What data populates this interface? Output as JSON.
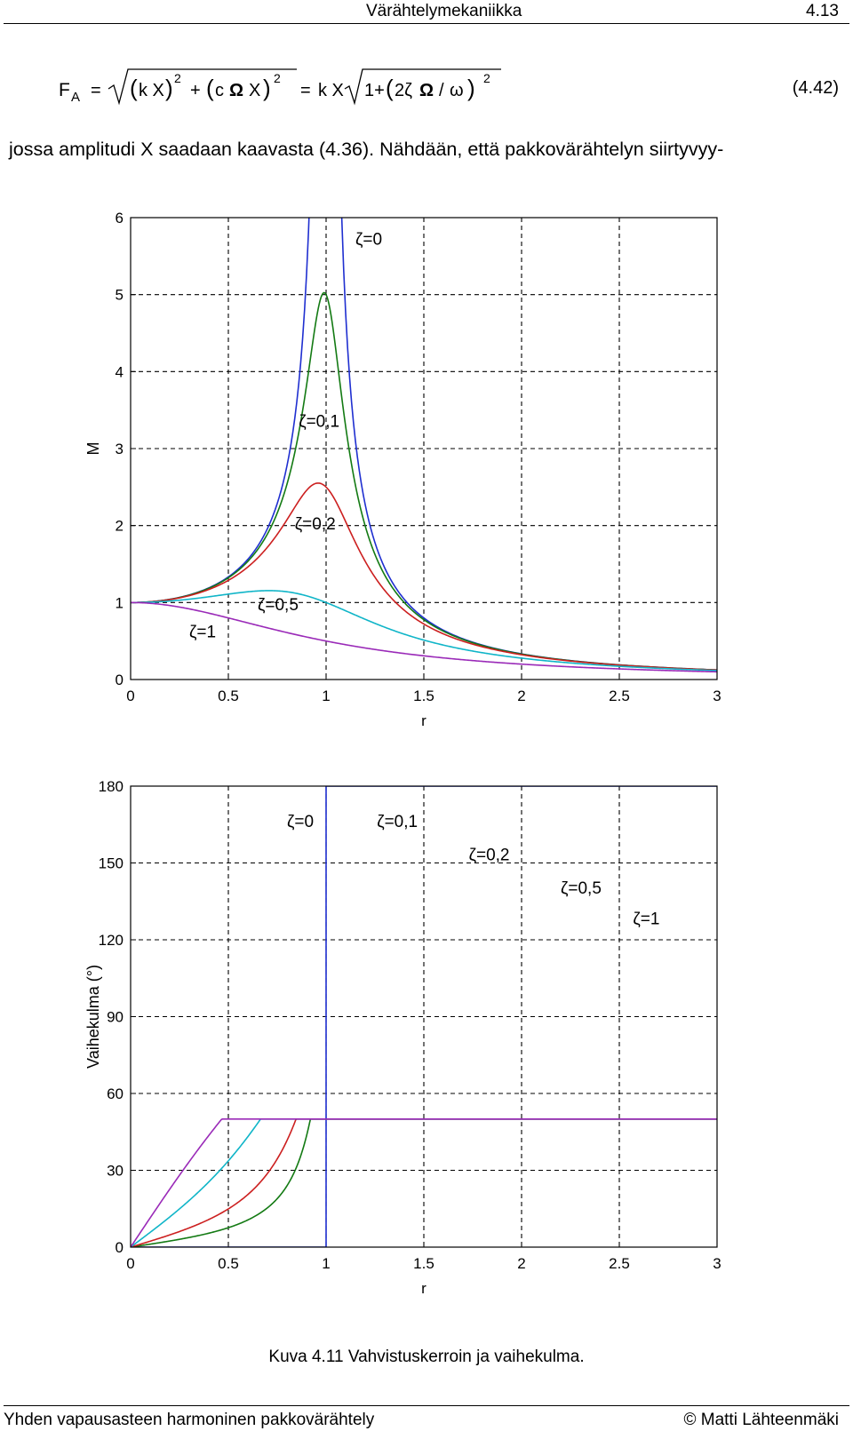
{
  "header": {
    "title": "Värähtelymekaniikka",
    "page": "4.13"
  },
  "equation": {
    "lhs": "F",
    "lhs_sub": "A",
    "number": "(4.42)"
  },
  "paragraph": "jossa amplitudi X saadaan kaavasta (4.36). Nähdään, että pakkovärähtelyn siirtyvyy-",
  "chart_data": [
    {
      "type": "line",
      "xlabel": "r",
      "ylabel": "M",
      "xlim": [
        0,
        3
      ],
      "ylim": [
        0,
        6
      ],
      "xticks": [
        "0",
        "0.5",
        "1",
        "1.5",
        "2",
        "2.5",
        "3"
      ],
      "yticks": [
        "0",
        "1",
        "2",
        "3",
        "4",
        "5",
        "6"
      ],
      "grid": true,
      "series": [
        {
          "name": "ζ=0",
          "color": "#1f2fd0",
          "zeta": 0
        },
        {
          "name": "ζ=0,1",
          "color": "#137a13",
          "zeta": 0.1
        },
        {
          "name": "ζ=0,2",
          "color": "#cc1f1f",
          "zeta": 0.2
        },
        {
          "name": "ζ=0,5",
          "color": "#10b5c8",
          "zeta": 0.5
        },
        {
          "name": "ζ=1",
          "color": "#9a2ab8",
          "zeta": 1
        }
      ],
      "annotations": [
        {
          "text": "ζ=0",
          "x": 1.15,
          "y": 5.65
        },
        {
          "text": "ζ=0,1",
          "x": 0.86,
          "y": 3.28
        },
        {
          "text": "ζ=0,2",
          "x": 0.84,
          "y": 1.95
        },
        {
          "text": "ζ=0,5",
          "x": 0.65,
          "y": 0.9
        },
        {
          "text": "ζ=1",
          "x": 0.3,
          "y": 0.55
        }
      ]
    },
    {
      "type": "line",
      "xlabel": "r",
      "ylabel": "Vaihekulma (°)",
      "xlim": [
        0,
        3
      ],
      "ylim": [
        0,
        180
      ],
      "xticks": [
        "0",
        "0.5",
        "1",
        "1.5",
        "2",
        "2.5",
        "3"
      ],
      "yticks": [
        "0",
        "30",
        "60",
        "90",
        "120",
        "150",
        "180"
      ],
      "grid": true,
      "series": [
        {
          "name": "ζ=0",
          "color": "#1f2fd0",
          "zeta": 0
        },
        {
          "name": "ζ=0,1",
          "color": "#137a13",
          "zeta": 0.1
        },
        {
          "name": "ζ=0,2",
          "color": "#cc1f1f",
          "zeta": 0.2
        },
        {
          "name": "ζ=0,5",
          "color": "#10b5c8",
          "zeta": 0.5
        },
        {
          "name": "ζ=1",
          "color": "#9a2ab8",
          "zeta": 1
        }
      ],
      "annotations": [
        {
          "text": "ζ=0",
          "x": 0.8,
          "y": 164
        },
        {
          "text": "ζ=0,1",
          "x": 1.26,
          "y": 164
        },
        {
          "text": "ζ=0,2",
          "x": 1.73,
          "y": 151
        },
        {
          "text": "ζ=0,5",
          "x": 2.2,
          "y": 138
        },
        {
          "text": "ζ=1",
          "x": 2.57,
          "y": 126
        }
      ]
    }
  ],
  "caption": "Kuva 4.11 Vahvistuskerroin ja vaihekulma.",
  "footer": {
    "left": "Yhden vapausasteen harmoninen pakkovärähtely",
    "right": "© Matti Lähteenmäki"
  }
}
